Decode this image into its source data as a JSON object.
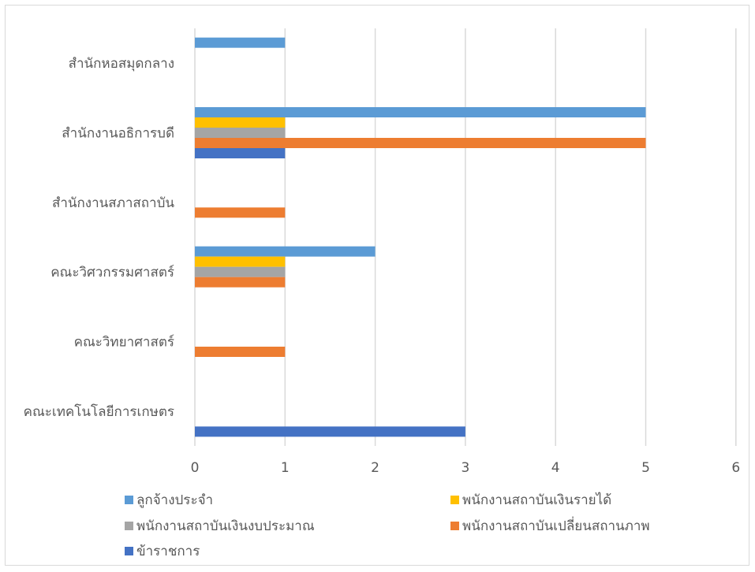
{
  "chart_data": {
    "type": "bar",
    "orientation": "horizontal",
    "categories": [
      "สำนักหอสมุดกลาง",
      "สำนักงานอธิการบดี",
      "สำนักงานสภาสถาบัน",
      "คณะวิศวกรรมศาสตร์",
      "คณะวิทยาศาสตร์",
      "คณะเทคโนโลยีการเกษตร"
    ],
    "series": [
      {
        "name": "ลูกจ้างประจำ",
        "color": "#5b9bd5",
        "values": [
          1,
          5,
          0,
          2,
          0,
          0
        ]
      },
      {
        "name": "พนักงานสถาบันเงินรายได้",
        "color": "#ffc000",
        "values": [
          0,
          1,
          0,
          1,
          0,
          0
        ]
      },
      {
        "name": "พนักงานสถาบันเงินงบประมาณ",
        "color": "#a5a5a5",
        "values": [
          0,
          1,
          0,
          1,
          0,
          0
        ]
      },
      {
        "name": "พนักงานสถาบันเปลี่ยนสถานภาพ",
        "color": "#ed7d31",
        "values": [
          0,
          5,
          1,
          1,
          1,
          0
        ]
      },
      {
        "name": "ข้าราชการ",
        "color": "#4472c4",
        "values": [
          0,
          1,
          0,
          0,
          0,
          3
        ]
      }
    ],
    "xlim": [
      0,
      6
    ],
    "xticks": [
      "0",
      "1",
      "2",
      "3",
      "4",
      "5",
      "6"
    ],
    "grid": true,
    "legend_position": "bottom"
  }
}
